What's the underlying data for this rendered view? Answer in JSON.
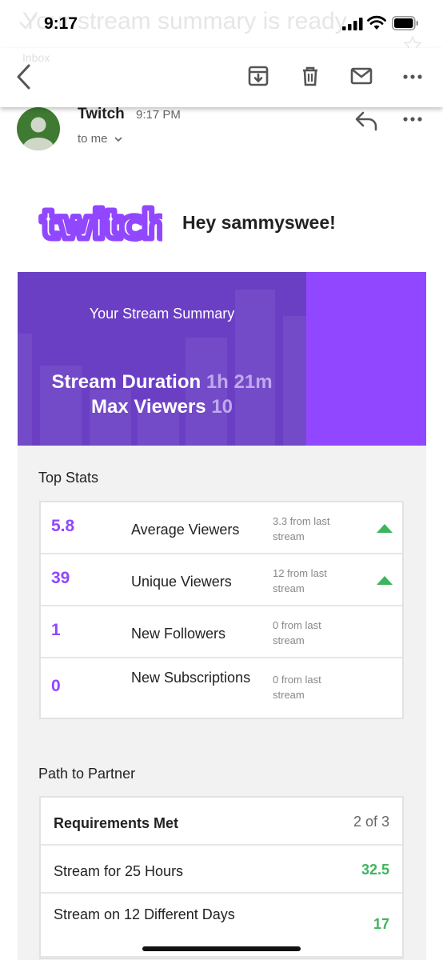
{
  "status_bar": {
    "time": "9:17",
    "ghost_subject": "Your stream summary is ready"
  },
  "toolbar": {
    "ghost_inbox": "Inbox",
    "icons": [
      "back-icon",
      "archive-icon",
      "trash-icon",
      "mail-icon",
      "more-icon"
    ]
  },
  "email": {
    "sender": "Twitch",
    "time": "9:17 PM",
    "recipient": "to me"
  },
  "header": {
    "logo_text": "twitch",
    "greeting": "Hey sammyswee!"
  },
  "hero": {
    "title": "Your Stream Summary",
    "duration_label": "Stream Duration",
    "duration_value": "1h 21m",
    "viewers_label": "Max Viewers",
    "viewers_value": "10"
  },
  "top_stats": {
    "title": "Top Stats",
    "rows": [
      {
        "value": "5.8",
        "label": "Average Viewers",
        "delta": "3.3 from last stream",
        "trend": "up"
      },
      {
        "value": "39",
        "label": "Unique Viewers",
        "delta": "12 from last stream",
        "trend": "up"
      },
      {
        "value": "1",
        "label": "New Followers",
        "delta": "0 from last stream",
        "trend": "none"
      },
      {
        "value": "0",
        "label": "New Subscriptions",
        "delta": "0 from last stream",
        "trend": "none"
      }
    ]
  },
  "partner": {
    "title": "Path to Partner",
    "header_label": "Requirements Met",
    "header_value": "2 of 3",
    "rows": [
      {
        "label": "Stream for 25 Hours",
        "value": "32.5"
      },
      {
        "label": "Stream on 12 Different Days",
        "value": "17"
      }
    ]
  },
  "colors": {
    "twitch_purple": "#9147ff",
    "hero_dark": "#6b3fc4",
    "positive_green": "#3fb45e"
  }
}
